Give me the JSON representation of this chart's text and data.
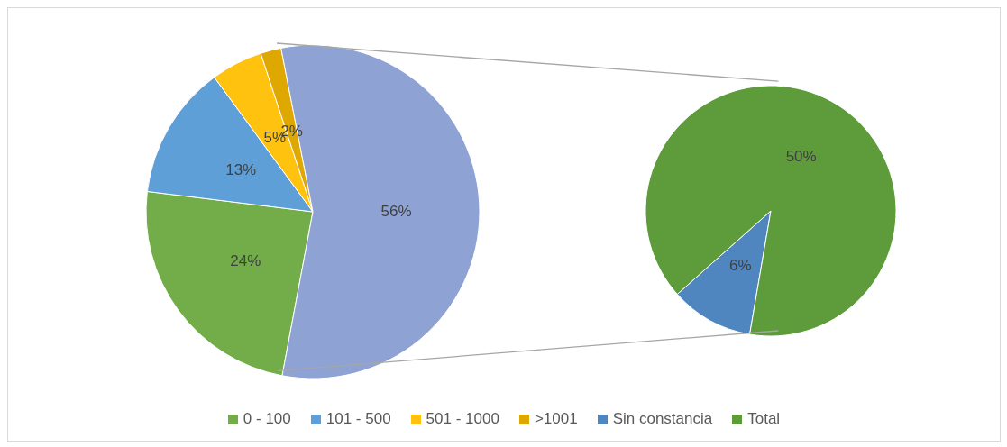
{
  "chart_data": [
    {
      "type": "pie",
      "categories": [
        "0 - 100",
        "101 - 500",
        "501 - 1000",
        ">1001",
        null
      ],
      "values": [
        24,
        13,
        5,
        2,
        56
      ],
      "colors": [
        "#72ad4a",
        "#5f9fd8",
        "#ffc20e",
        "#dfa800",
        "#8fa2d4"
      ],
      "value_labels": [
        "24%",
        "13%",
        "5%",
        "2%",
        "56%"
      ],
      "legend": "bottom"
    },
    {
      "type": "pie",
      "categories": [
        "Sin constancia",
        "Total"
      ],
      "values": [
        6,
        50
      ],
      "colors": [
        "#4f86bf",
        "#5e9b3b"
      ],
      "value_labels": [
        "6%",
        "50%"
      ],
      "legend": "bottom"
    }
  ]
}
